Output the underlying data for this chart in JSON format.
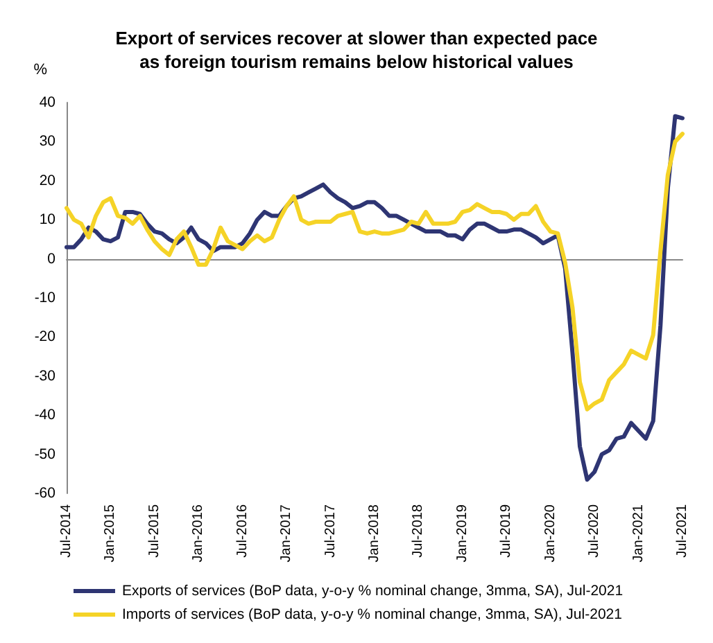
{
  "chart_data": {
    "type": "line",
    "title": "Export of services recover at slower than expected pace\nas foreign tourism remains below historical values",
    "ylabel": "%",
    "categories": [
      "Jul-2014",
      null,
      null,
      null,
      null,
      null,
      "Jan-2015",
      null,
      null,
      null,
      null,
      null,
      "Jul-2015",
      null,
      null,
      null,
      null,
      null,
      "Jan-2016",
      null,
      null,
      null,
      null,
      null,
      "Jul-2016",
      null,
      null,
      null,
      null,
      null,
      "Jan-2017",
      null,
      null,
      null,
      null,
      null,
      "Jul-2017",
      null,
      null,
      null,
      null,
      null,
      "Jan-2018",
      null,
      null,
      null,
      null,
      null,
      "Jul-2018",
      null,
      null,
      null,
      null,
      null,
      "Jan-2019",
      null,
      null,
      null,
      null,
      null,
      "Jul-2019",
      null,
      null,
      null,
      null,
      null,
      "Jan-2020",
      null,
      null,
      null,
      null,
      null,
      "Jul-2020",
      null,
      null,
      null,
      null,
      null,
      "Jan-2021",
      null,
      null,
      null,
      null,
      null,
      "Jul-2021"
    ],
    "series": [
      {
        "name": "Exports of services (BoP data, y-o-y % nominal change, 3mma, SA), Jul-2021",
        "color": "#2e3573",
        "values": [
          3,
          3,
          5,
          8,
          7,
          5,
          4.5,
          5.5,
          12,
          12,
          11.5,
          9,
          7,
          6.5,
          5,
          4,
          5.5,
          8,
          5,
          4,
          2,
          3,
          3,
          3,
          4,
          6.5,
          10,
          12,
          11,
          11,
          13.5,
          15.5,
          16,
          17,
          18,
          19,
          17,
          15.5,
          14.5,
          13,
          13.5,
          14.5,
          14.5,
          13,
          11,
          11,
          10,
          9,
          8,
          7,
          7,
          7,
          6,
          6,
          5,
          7.5,
          9,
          9,
          8,
          7,
          7,
          7.5,
          7.5,
          6.5,
          5.5,
          4,
          5,
          6,
          -2.5,
          -24,
          -48,
          -56.5,
          -54.5,
          -50,
          -49,
          -46,
          -45.5,
          -42,
          -44,
          -46,
          -41.5,
          -17,
          18,
          36.5,
          36
        ]
      },
      {
        "name": "Imports of services (BoP data, y-o-y % nominal change, 3mma, SA), Jul-2021",
        "color": "#f5d327",
        "values": [
          13,
          10,
          9,
          5.5,
          11,
          14.5,
          15.5,
          11,
          10.5,
          9,
          11,
          7.5,
          4.5,
          2.5,
          1,
          5,
          7,
          3,
          -1.5,
          -1.5,
          2.5,
          8,
          4.5,
          3.5,
          2.5,
          4.5,
          6,
          4.5,
          5.5,
          10,
          13.5,
          16,
          10,
          9,
          9.5,
          9.5,
          9.5,
          11,
          11.5,
          12,
          7,
          6.5,
          7,
          6.5,
          6.5,
          7,
          7.5,
          9.5,
          9,
          12,
          9,
          9,
          9,
          9.5,
          12,
          12.5,
          14,
          13,
          12,
          12,
          11.5,
          10,
          11.5,
          11.5,
          13.5,
          9.5,
          7,
          6.5,
          -1,
          -12.5,
          -31.5,
          -38.5,
          -37,
          -36,
          -31,
          -29,
          -27,
          -23.5,
          -24.5,
          -25.5,
          -19.5,
          2,
          21.5,
          30,
          32
        ]
      }
    ],
    "ylim": [
      -60,
      40
    ],
    "yticks": [
      -60,
      -50,
      -40,
      -30,
      -20,
      -10,
      0,
      10,
      20,
      30,
      40
    ],
    "legend": "bottom",
    "line_style": "solid"
  }
}
